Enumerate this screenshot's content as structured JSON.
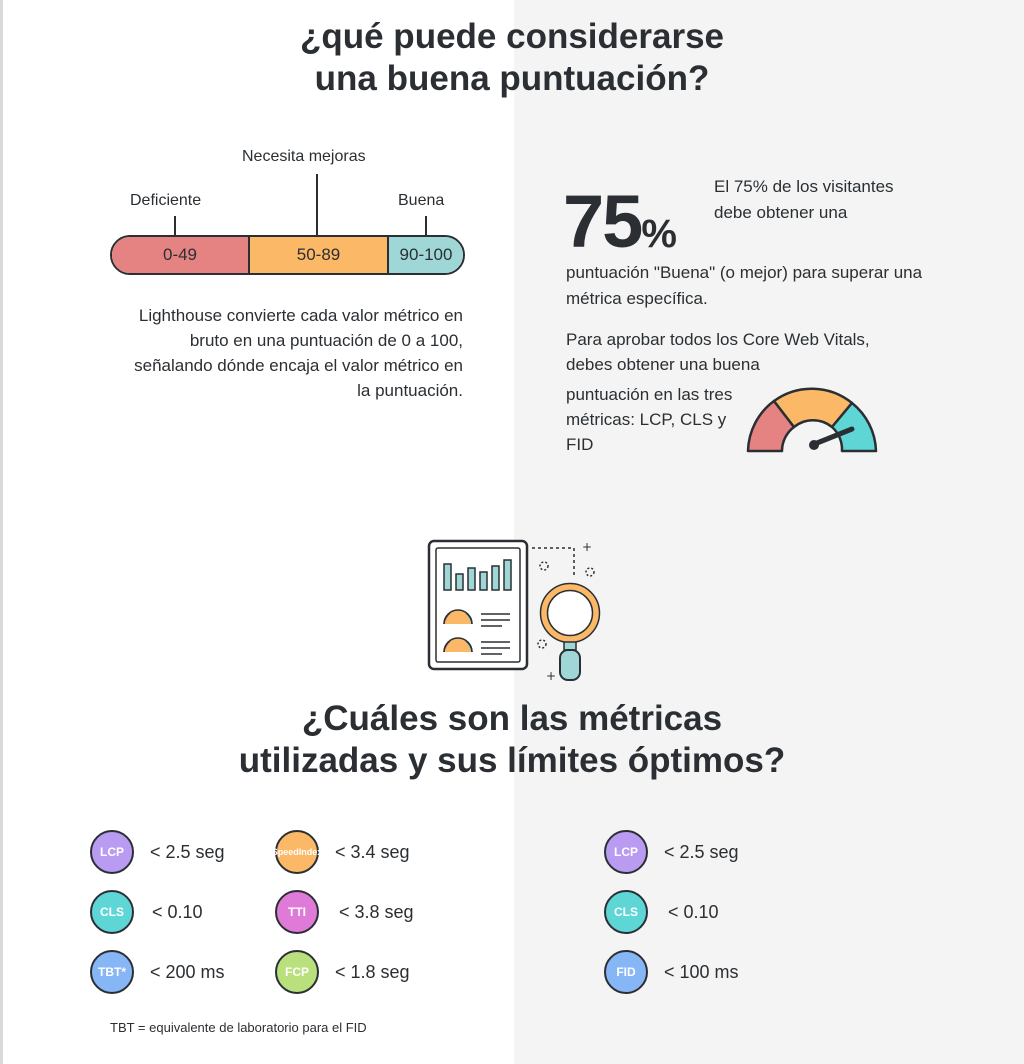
{
  "heading1": {
    "line1": "¿qué puede considerarse",
    "line2": "una buena puntuación?"
  },
  "scale": {
    "labels": {
      "poor": "Deficiente",
      "needs": "Necesita mejoras",
      "good": "Buena"
    },
    "segments": [
      {
        "range": "0-49",
        "color": "#e58383"
      },
      {
        "range": "50-89",
        "color": "#fbb866"
      },
      {
        "range": "90-100",
        "color": "#9fd7d7"
      }
    ]
  },
  "lighthouse_text": "Lighthouse convierte cada valor métrico en bruto en una puntuación de 0 a 100, señalando dónde encaja el valor métrico en la puntuación.",
  "stat": {
    "number": "75",
    "percent": "%",
    "text_a": "El 75% de los visitantes debe obtener una",
    "text_b": "puntuación \"Buena\" (o mejor) para superar una métrica específica."
  },
  "core_text_a": "Para aprobar todos los Core Web Vitals, debes obtener una buena",
  "core_text_b": "puntuación en las tres métricas: LCP, CLS y FID",
  "heading2": {
    "line1": "¿Cuáles son las métricas",
    "line2": "utilizadas y sus límites óptimos?"
  },
  "lab_metrics": [
    {
      "name": "LCP",
      "value": "< 2.5 seg",
      "color": "#b99cf2"
    },
    {
      "name": "CLS",
      "value": "< 0.10",
      "color": "#5fd6d6"
    },
    {
      "name": "TBT*",
      "value": "< 200 ms",
      "color": "#87b6f7"
    },
    {
      "name_line1": "Speed",
      "name_line2": "Index",
      "value": "< 3.4 seg",
      "color": "#fbb866"
    },
    {
      "name": "TTI",
      "value": "< 3.8 seg",
      "color": "#e07ad8"
    },
    {
      "name": "FCP",
      "value": "< 1.8 seg",
      "color": "#b9e07d"
    }
  ],
  "field_metrics": [
    {
      "name": "LCP",
      "value": "< 2.5 seg",
      "color": "#b99cf2"
    },
    {
      "name": "CLS",
      "value": "< 0.10",
      "color": "#5fd6d6"
    },
    {
      "name": "FID",
      "value": "< 100 ms",
      "color": "#87b6f7"
    }
  ],
  "footnote": "TBT = equivalente de laboratorio para el FID"
}
